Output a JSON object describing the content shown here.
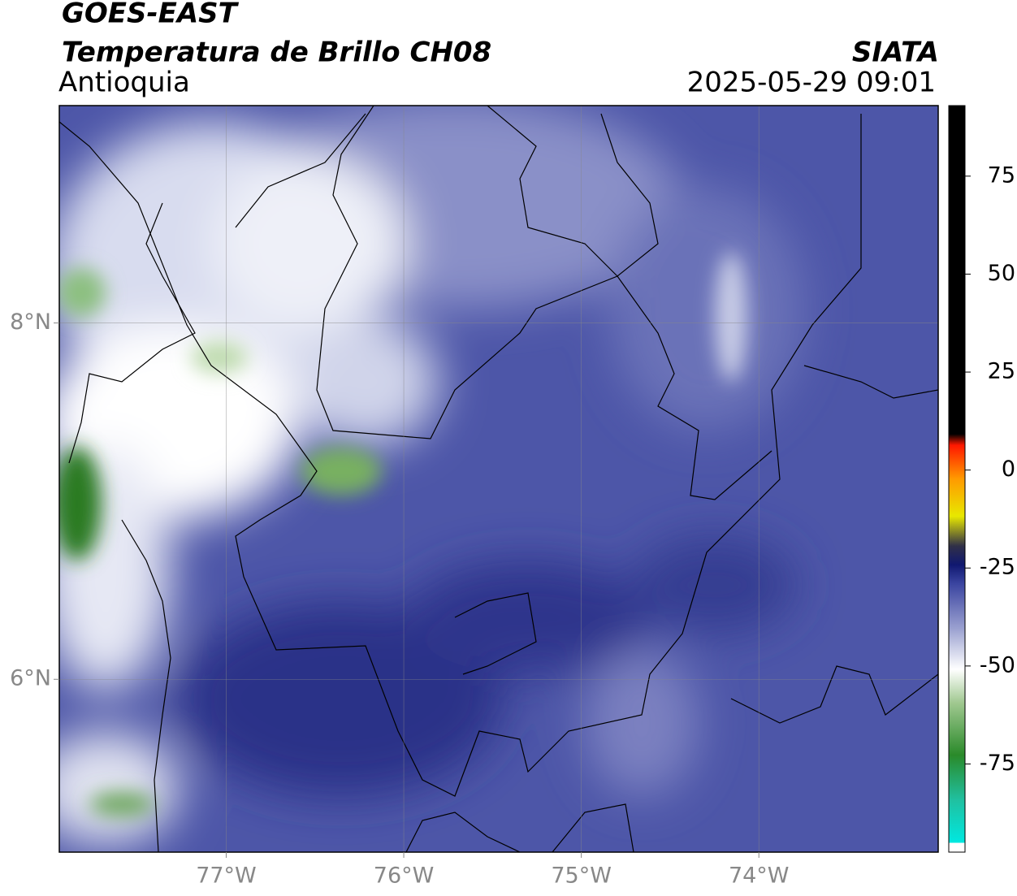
{
  "header": {
    "title": "GOES-EAST",
    "subtitle": "Temperatura de Brillo CH08",
    "region": "Antioquia",
    "source": "SIATA",
    "datetime": "2025-05-29 09:01"
  },
  "map": {
    "xlim": [
      -77.94,
      -72.99
    ],
    "ylim": [
      5.03,
      9.22
    ],
    "xticks": [
      {
        "value": -77,
        "label": "77°W"
      },
      {
        "value": -76,
        "label": "76°W"
      },
      {
        "value": -75,
        "label": "75°W"
      },
      {
        "value": -74,
        "label": "74°W"
      }
    ],
    "yticks": [
      {
        "value": 8,
        "label": "8°N"
      },
      {
        "value": 6,
        "label": "6°N"
      }
    ],
    "grid": true
  },
  "colorbar": {
    "lim": [
      -97.5,
      93
    ],
    "ticks": [
      75,
      50,
      25,
      0,
      -25,
      -50,
      -75
    ]
  }
}
